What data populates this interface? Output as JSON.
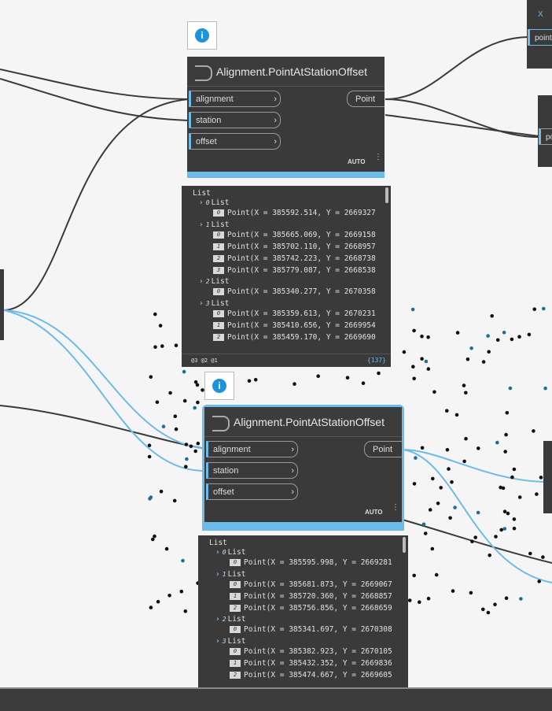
{
  "nodes": [
    {
      "title": "Alignment.PointAtStationOffset",
      "inputs": [
        "alignment",
        "station",
        "offset"
      ],
      "outputs": [
        "Point"
      ],
      "lacing": "AUTO",
      "info": "i"
    },
    {
      "title": "Alignment.PointAtStationOffset",
      "inputs": [
        "alignment",
        "station",
        "offset"
      ],
      "outputs": [
        "Point"
      ],
      "lacing": "AUTO",
      "info": "i"
    }
  ],
  "previews": [
    {
      "root": "List",
      "groups": [
        {
          "index": "0",
          "label": "List",
          "items": [
            {
              "index": "0",
              "text": "Point(X = 385592.514, Y = 2669327"
            }
          ]
        },
        {
          "index": "1",
          "label": "List",
          "items": [
            {
              "index": "0",
              "text": "Point(X = 385665.069, Y = 2669158"
            },
            {
              "index": "1",
              "text": "Point(X = 385702.110, Y = 2668957"
            },
            {
              "index": "2",
              "text": "Point(X = 385742.223, Y = 2668738"
            },
            {
              "index": "3",
              "text": "Point(X = 385779.087, Y = 2668538"
            }
          ]
        },
        {
          "index": "2",
          "label": "List",
          "items": [
            {
              "index": "0",
              "text": "Point(X = 385340.277, Y = 2670358"
            }
          ]
        },
        {
          "index": "3",
          "label": "List",
          "items": [
            {
              "index": "0",
              "text": "Point(X = 385359.613, Y = 2670231"
            },
            {
              "index": "1",
              "text": "Point(X = 385410.656, Y = 2669954"
            },
            {
              "index": "2",
              "text": "Point(X = 385459.170, Y = 2669690"
            }
          ]
        }
      ],
      "footer": {
        "levels": "@3 @2 @1",
        "count": "{137}"
      }
    },
    {
      "root": "List",
      "groups": [
        {
          "index": "0",
          "label": "List",
          "items": [
            {
              "index": "0",
              "text": "Point(X = 385595.998, Y = 2669281"
            }
          ]
        },
        {
          "index": "1",
          "label": "List",
          "items": [
            {
              "index": "0",
              "text": "Point(X = 385681.873, Y = 2669067"
            },
            {
              "index": "1",
              "text": "Point(X = 385720.360, Y = 2668857"
            },
            {
              "index": "2",
              "text": "Point(X = 385756.856, Y = 2668659"
            }
          ]
        },
        {
          "index": "2",
          "label": "List",
          "items": [
            {
              "index": "0",
              "text": "Point(X = 385341.697, Y = 2670308"
            }
          ]
        },
        {
          "index": "3",
          "label": "List",
          "items": [
            {
              "index": "0",
              "text": "Point(X = 385382.923, Y = 2670105"
            },
            {
              "index": "1",
              "text": "Point(X = 385432.352, Y = 2669836"
            },
            {
              "index": "2",
              "text": "Point(X = 385474.667, Y = 2669605"
            }
          ]
        }
      ]
    }
  ],
  "partial_nodes": [
    {
      "label": "X",
      "port": "point"
    },
    {
      "port": "po"
    }
  ]
}
